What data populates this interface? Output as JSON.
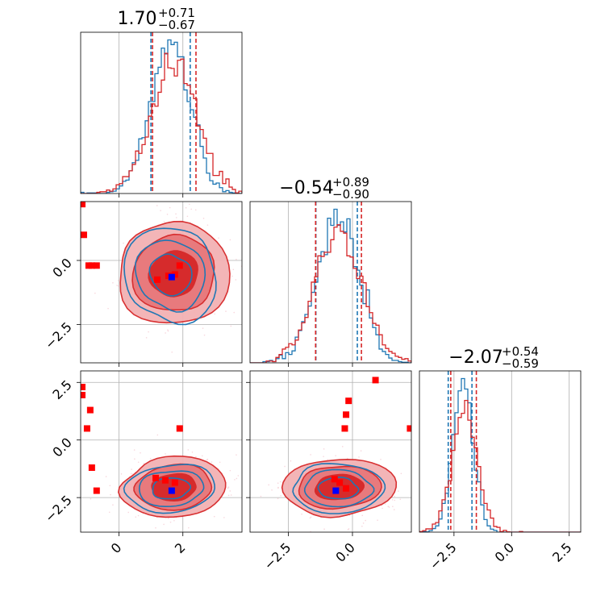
{
  "chart_data": {
    "type": "corner",
    "grid": true,
    "colors": {
      "blue": "#1f77b4",
      "red": "#d62728",
      "red_fill": "#e8888a",
      "red_dark": "#d62728",
      "marker_red": "#ff0000",
      "marker_blue": "#0000ff"
    },
    "parameters": [
      {
        "range": [
          -1.2,
          3.85
        ],
        "tick_values": [
          0,
          2
        ],
        "tick_labels": [
          "0",
          "2"
        ],
        "title_value": "1.70",
        "title_plus": "+0.71",
        "title_minus": "−0.67"
      },
      {
        "range": [
          -4.0,
          2.3
        ],
        "tick_values": [
          -2.5,
          0.0
        ],
        "tick_labels": [
          "−2.5",
          "0.0"
        ],
        "title_value": "−0.54",
        "title_plus": "+0.89",
        "title_minus": "−0.90"
      },
      {
        "range": [
          -4.0,
          3.0
        ],
        "tick_values": [
          -2.5,
          0.0,
          2.5
        ],
        "tick_labels": [
          "−2.5",
          "0.0",
          "2.5"
        ],
        "title_value": "−2.07",
        "title_plus": "+0.54",
        "title_minus": "−0.59"
      }
    ],
    "posteriors": [
      {
        "name": "blue",
        "mean": [
          1.62,
          -0.56,
          -2.1
        ],
        "sd": [
          0.62,
          0.82,
          0.44
        ],
        "quantiles": [
          [
            1.0,
            2.23
          ],
          [
            -1.43,
            0.19
          ],
          [
            -2.75,
            -1.72
          ]
        ]
      },
      {
        "name": "red",
        "mean": [
          1.72,
          -0.52,
          -2.05
        ],
        "sd": [
          0.72,
          0.92,
          0.56
        ],
        "quantiles": [
          [
            1.05,
            2.41
          ],
          [
            -1.44,
            0.35
          ],
          [
            -2.64,
            -1.53
          ]
        ]
      }
    ],
    "truth_point": [
      1.65,
      -0.65,
      -2.2
    ],
    "outlier_points": [
      {
        "x": -1.15,
        "y": 2.2
      },
      {
        "x": -1.1,
        "y": 1.0
      },
      {
        "x": -0.95,
        "y": -0.2
      },
      {
        "x": -0.85,
        "y": -0.2
      },
      {
        "x": -0.7,
        "y": -0.2
      },
      {
        "x": 1.2,
        "y": -0.75
      },
      {
        "x": 1.9,
        "y": -0.2
      },
      {
        "x": 1.75,
        "y": -0.55
      },
      {
        "x": 1.55,
        "y": -0.6
      },
      {
        "x": -1.15,
        "y": 2.3,
        "pair": "20"
      },
      {
        "x": -1.15,
        "y": 1.95,
        "pair": "20"
      },
      {
        "x": -0.9,
        "y": 1.3,
        "pair": "20"
      },
      {
        "x": -1.0,
        "y": 0.5,
        "pair": "20"
      },
      {
        "x": -0.85,
        "y": -1.2,
        "pair": "20"
      },
      {
        "x": -0.7,
        "y": -2.2,
        "pair": "20"
      },
      {
        "x": 1.9,
        "y": 0.5,
        "pair": "20"
      },
      {
        "x": 1.15,
        "y": -1.65,
        "pair": "20"
      },
      {
        "x": 1.45,
        "y": -1.75,
        "pair": "20"
      },
      {
        "x": 1.75,
        "y": -1.85,
        "pair": "20"
      },
      {
        "x": 0.9,
        "y": 2.6,
        "pair": "21"
      },
      {
        "x": -0.15,
        "y": 1.7,
        "pair": "21"
      },
      {
        "x": -0.25,
        "y": 1.1,
        "pair": "21"
      },
      {
        "x": -0.3,
        "y": 0.5,
        "pair": "21"
      },
      {
        "x": 2.25,
        "y": 0.5,
        "pair": "21"
      },
      {
        "x": -0.7,
        "y": -1.7,
        "pair": "21"
      },
      {
        "x": -0.5,
        "y": -1.85,
        "pair": "21"
      },
      {
        "x": -0.25,
        "y": -2.1,
        "pair": "21"
      }
    ]
  }
}
